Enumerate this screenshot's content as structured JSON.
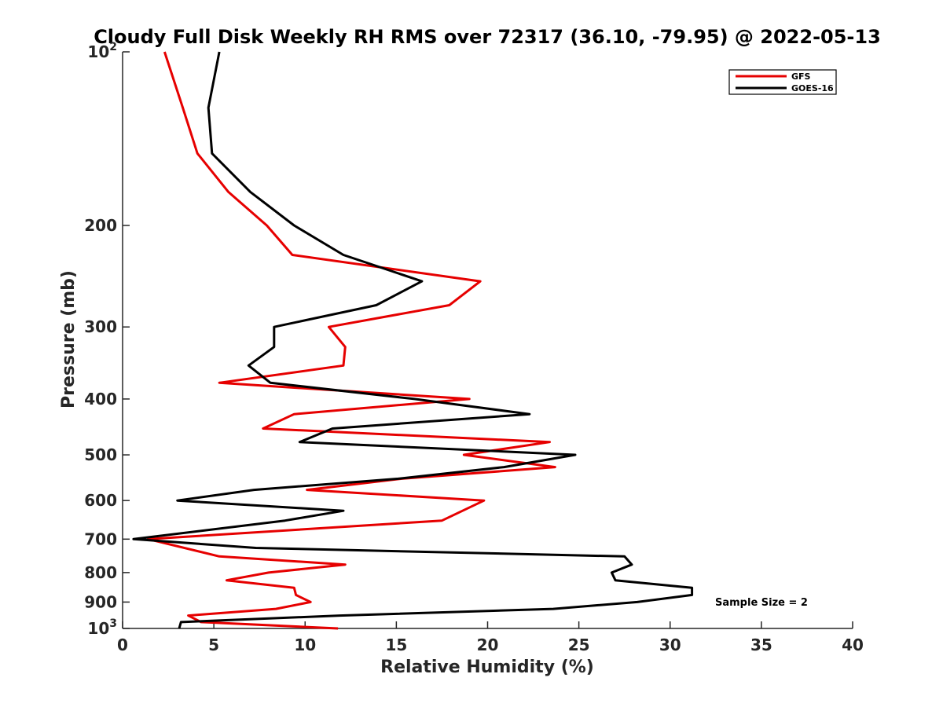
{
  "chart_data": {
    "type": "line",
    "title": "Cloudy Full Disk Weekly RH RMS over 72317 (36.10, -79.95) @ 2022-05-13",
    "xlabel": "Relative Humidity (%)",
    "ylabel": "Pressure (mb)",
    "xlim": [
      0,
      40
    ],
    "ylim": [
      100,
      1000
    ],
    "y_scale": "log",
    "y_reversed": true,
    "grid": false,
    "legend_position": "top-right",
    "x_ticks": [
      0,
      5,
      10,
      15,
      20,
      25,
      30,
      35,
      40
    ],
    "x_tick_labels": [
      "0",
      "5",
      "10",
      "15",
      "20",
      "25",
      "30",
      "35",
      "40"
    ],
    "y_ticks": [
      100,
      200,
      300,
      400,
      500,
      600,
      700,
      800,
      900,
      1000
    ],
    "y_tick_labels": [
      {
        "base": "10",
        "exp": "2"
      },
      {
        "base": "200",
        "exp": ""
      },
      {
        "base": "300",
        "exp": ""
      },
      {
        "base": "400",
        "exp": ""
      },
      {
        "base": "500",
        "exp": ""
      },
      {
        "base": "600",
        "exp": ""
      },
      {
        "base": "700",
        "exp": ""
      },
      {
        "base": "800",
        "exp": ""
      },
      {
        "base": "900",
        "exp": ""
      },
      {
        "base": "10",
        "exp": "3"
      }
    ],
    "annotation": "Sample Size = 2",
    "series": [
      {
        "name": "GFS",
        "color": "#e60000",
        "points": [
          [
            2.3,
            100
          ],
          [
            3.3,
            125
          ],
          [
            4.1,
            150
          ],
          [
            5.8,
            175
          ],
          [
            7.9,
            200
          ],
          [
            9.3,
            225
          ],
          [
            19.6,
            250
          ],
          [
            17.9,
            275
          ],
          [
            11.3,
            300
          ],
          [
            12.2,
            325
          ],
          [
            12.1,
            350
          ],
          [
            5.3,
            375
          ],
          [
            19.0,
            400
          ],
          [
            9.4,
            425
          ],
          [
            7.7,
            450
          ],
          [
            23.4,
            475
          ],
          [
            18.7,
            500
          ],
          [
            23.7,
            525
          ],
          [
            15.3,
            550
          ],
          [
            10.1,
            575
          ],
          [
            19.8,
            600
          ],
          [
            17.5,
            650
          ],
          [
            1.4,
            700
          ],
          [
            5.3,
            750
          ],
          [
            12.2,
            775
          ],
          [
            8.0,
            800
          ],
          [
            5.7,
            825
          ],
          [
            9.4,
            850
          ],
          [
            9.5,
            875
          ],
          [
            10.3,
            900
          ],
          [
            8.4,
            925
          ],
          [
            3.6,
            950
          ],
          [
            4.3,
            975
          ],
          [
            11.8,
            1000
          ]
        ]
      },
      {
        "name": "GOES-16",
        "color": "#000000",
        "points": [
          [
            5.3,
            100
          ],
          [
            4.7,
            125
          ],
          [
            4.9,
            150
          ],
          [
            7.0,
            175
          ],
          [
            9.4,
            200
          ],
          [
            12.1,
            225
          ],
          [
            16.4,
            250
          ],
          [
            13.9,
            275
          ],
          [
            8.3,
            300
          ],
          [
            8.3,
            325
          ],
          [
            6.9,
            350
          ],
          [
            8.1,
            375
          ],
          [
            16.0,
            400
          ],
          [
            22.3,
            425
          ],
          [
            11.5,
            450
          ],
          [
            9.7,
            475
          ],
          [
            24.8,
            500
          ],
          [
            20.9,
            525
          ],
          [
            15.1,
            550
          ],
          [
            7.2,
            575
          ],
          [
            3.0,
            600
          ],
          [
            12.1,
            625
          ],
          [
            8.9,
            650
          ],
          [
            0.6,
            700
          ],
          [
            7.3,
            725
          ],
          [
            27.5,
            750
          ],
          [
            27.9,
            775
          ],
          [
            26.8,
            800
          ],
          [
            27.0,
            825
          ],
          [
            31.2,
            850
          ],
          [
            31.2,
            875
          ],
          [
            28.2,
            900
          ],
          [
            23.6,
            925
          ],
          [
            11.9,
            950
          ],
          [
            3.2,
            975
          ],
          [
            3.1,
            1000
          ]
        ]
      }
    ]
  }
}
